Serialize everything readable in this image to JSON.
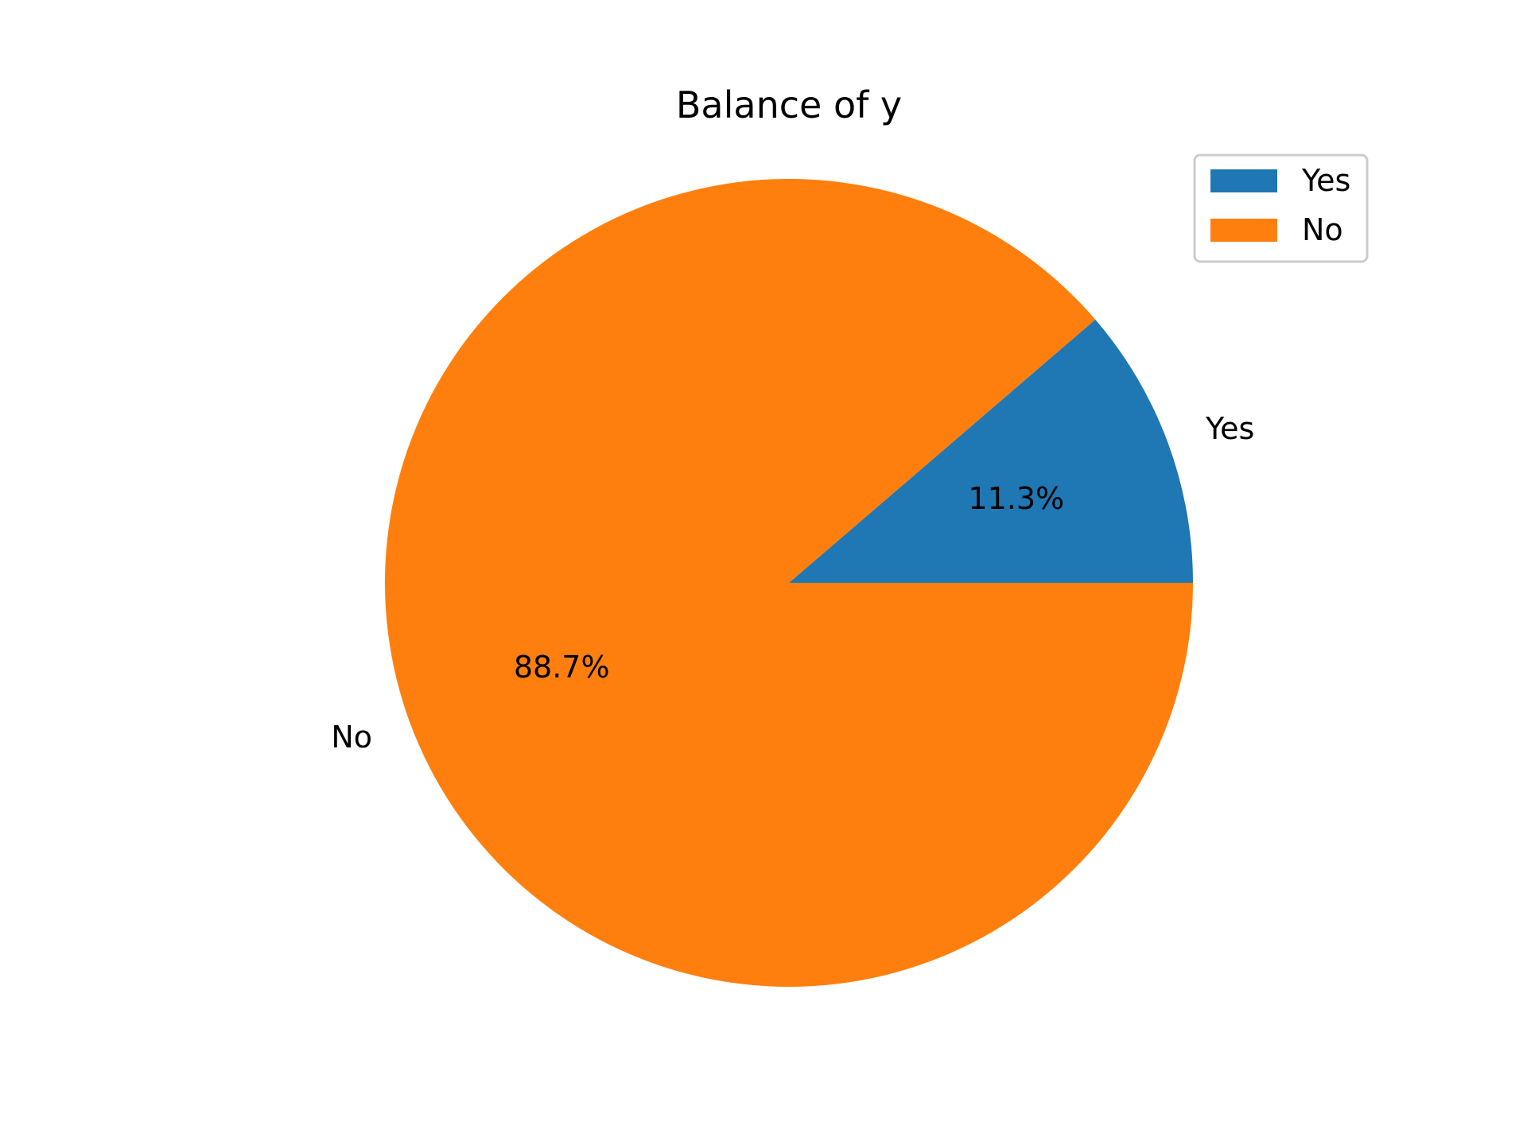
{
  "chart_data": {
    "type": "pie",
    "title": "Balance of y",
    "categories": [
      "Yes",
      "No"
    ],
    "values": [
      11.3,
      88.7
    ],
    "value_labels": [
      "11.3%",
      "88.7%"
    ],
    "colors": [
      "#1f77b4",
      "#ff7f0e"
    ],
    "start_angle_deg": 0,
    "direction": "counterclockwise",
    "legend": {
      "placement": "top-right",
      "entries": [
        "Yes",
        "No"
      ]
    }
  }
}
